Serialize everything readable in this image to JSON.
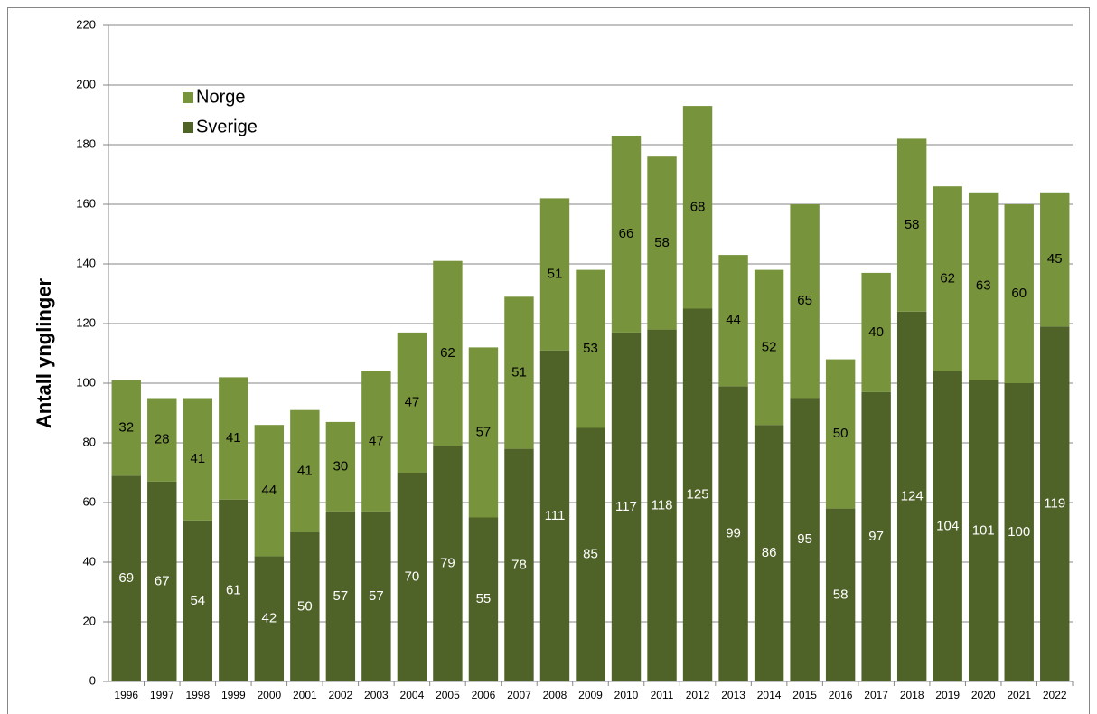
{
  "chart_data": {
    "type": "stacked_bar",
    "y_label": "Antall ynglinger",
    "categories": [
      "1996",
      "1997",
      "1998",
      "1999",
      "2000",
      "2001",
      "2002",
      "2003",
      "2004",
      "2005",
      "2006",
      "2007",
      "2008",
      "2009",
      "2010",
      "2011",
      "2012",
      "2013",
      "2014",
      "2015",
      "2016",
      "2017",
      "2018",
      "2019",
      "2020",
      "2021",
      "2022"
    ],
    "series": [
      {
        "name": "Sverige",
        "color": "#4f6228",
        "label_color": "#ffffff",
        "values": [
          69,
          67,
          54,
          61,
          42,
          50,
          57,
          57,
          70,
          79,
          55,
          78,
          111,
          85,
          117,
          118,
          125,
          99,
          86,
          95,
          58,
          97,
          124,
          104,
          101,
          100,
          119
        ]
      },
      {
        "name": "Norge",
        "color": "#77933c",
        "label_color": "#000000",
        "values": [
          32,
          28,
          41,
          41,
          44,
          41,
          30,
          47,
          47,
          62,
          57,
          51,
          51,
          53,
          66,
          58,
          68,
          44,
          52,
          65,
          50,
          40,
          58,
          62,
          63,
          60,
          45
        ]
      }
    ],
    "ylim": [
      0,
      220
    ],
    "yticks": [
      0,
      20,
      40,
      60,
      80,
      100,
      120,
      140,
      160,
      180,
      200,
      220
    ],
    "grid": true
  }
}
